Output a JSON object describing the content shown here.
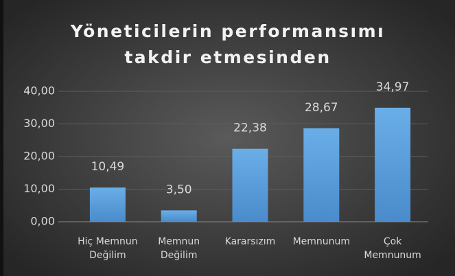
{
  "chart_data": {
    "type": "bar",
    "title": "Yöneticilerin performansımı\ntakdir etmesinden",
    "categories": [
      "Hiç Memnun\nDeğilim",
      "Memnun\nDeğilim",
      "Kararsızım",
      "Memnunum",
      "Çok\nMemnunum"
    ],
    "values": [
      10.49,
      3.5,
      22.38,
      28.67,
      34.97
    ],
    "value_labels": [
      "10,49",
      "3,50",
      "22,38",
      "28,67",
      "34,97"
    ],
    "color": "#5b9bd5",
    "ylim": [
      0,
      40
    ],
    "yticks": [
      {
        "value": 0,
        "label": "0,00"
      },
      {
        "value": 10,
        "label": "10,00"
      },
      {
        "value": 20,
        "label": "20,00"
      },
      {
        "value": 30,
        "label": "30,00"
      },
      {
        "value": 40,
        "label": "40,00"
      }
    ],
    "grid": true
  }
}
